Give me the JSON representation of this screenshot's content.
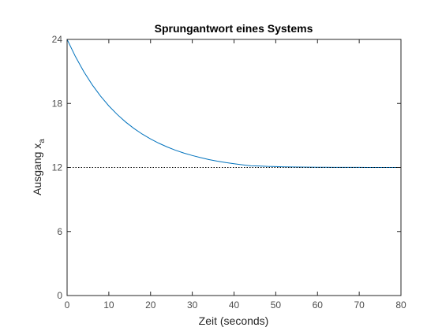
{
  "chart_data": {
    "type": "line",
    "title": "Sprungantwort eines Systems",
    "xlabel": "Zeit (seconds)",
    "ylabel": "Ausgang x",
    "ylabel_subscript": "a",
    "xlim": [
      0,
      80
    ],
    "ylim": [
      0,
      24
    ],
    "xticks": [
      0,
      10,
      20,
      30,
      40,
      50,
      60,
      70,
      80
    ],
    "yticks": [
      0,
      6,
      12,
      18,
      24
    ],
    "grid": false,
    "series": [
      {
        "x": [
          0,
          2,
          4,
          6,
          8,
          10,
          12,
          14,
          16,
          18,
          20,
          22,
          24,
          26,
          28,
          30,
          32,
          34,
          36,
          38,
          40,
          42,
          44,
          46,
          48,
          50,
          52,
          54,
          56,
          58,
          60,
          62,
          64,
          66,
          68,
          70,
          72,
          74,
          76,
          78,
          80
        ],
        "values": [
          24.0,
          22.39,
          20.98,
          19.76,
          18.7,
          17.77,
          16.97,
          16.27,
          15.66,
          15.13,
          14.67,
          14.27,
          13.92,
          13.61,
          13.35,
          13.12,
          12.92,
          12.74,
          12.59,
          12.46,
          12.35,
          12.25,
          12.16,
          12.14,
          12.1,
          12.08,
          12.06,
          12.05,
          12.04,
          12.03,
          12.02,
          12.02,
          12.01,
          12.01,
          12.01,
          12.01,
          12.0,
          12.0,
          12.0,
          12.0,
          12.0
        ],
        "color": "#0072bd",
        "style": "solid"
      },
      {
        "x": [
          0,
          80
        ],
        "values": [
          12,
          12
        ],
        "color": "#000000",
        "style": "dotted"
      }
    ]
  }
}
